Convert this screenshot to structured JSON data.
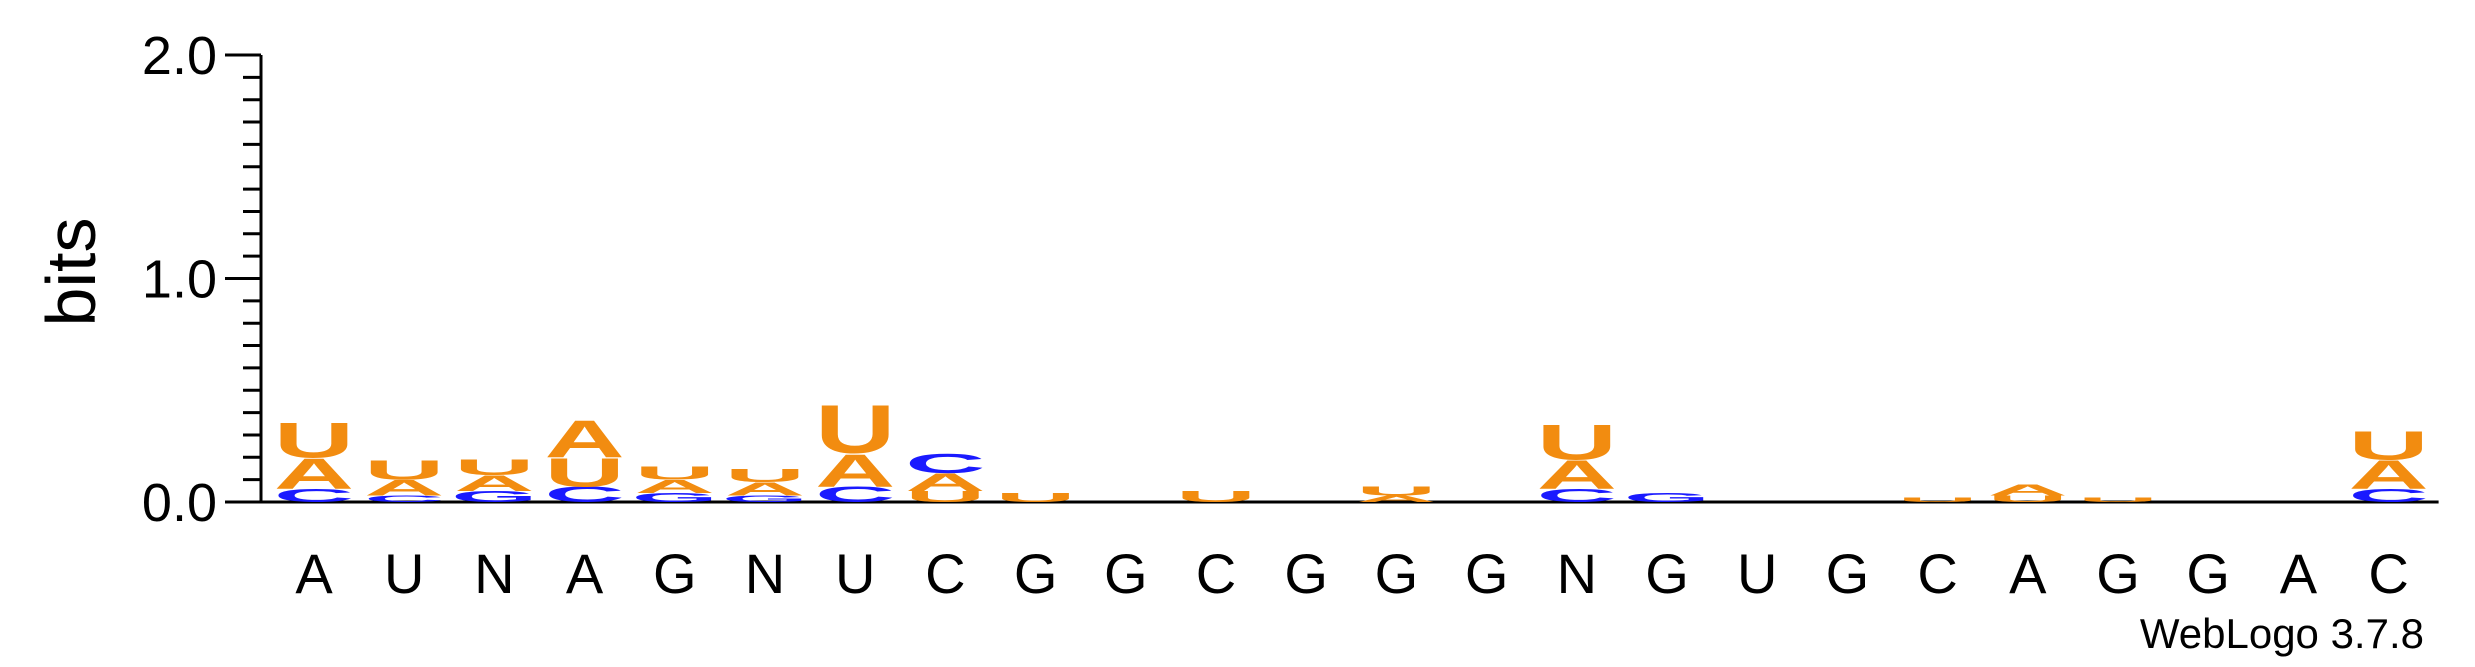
{
  "chart_data": {
    "type": "sequence-logo",
    "ylabel": "bits",
    "ylim": [
      0,
      2.0
    ],
    "yticks": [
      "0.0",
      "1.0",
      "2.0"
    ],
    "credit": "WebLogo 3.7.8",
    "colors": {
      "A": "#f28c10",
      "U": "#f28c10",
      "C": "#1a1aff",
      "G": "#1a1aff"
    },
    "positions": [
      {
        "label": "A",
        "stack": [
          {
            "letter": "C",
            "height": 0.06
          },
          {
            "letter": "A",
            "height": 0.14
          },
          {
            "letter": "U",
            "height": 0.16
          }
        ]
      },
      {
        "label": "U",
        "stack": [
          {
            "letter": "C",
            "height": 0.03
          },
          {
            "letter": "A",
            "height": 0.07
          },
          {
            "letter": "U",
            "height": 0.09
          }
        ]
      },
      {
        "label": "N",
        "stack": [
          {
            "letter": "G",
            "height": 0.05
          },
          {
            "letter": "A",
            "height": 0.07
          },
          {
            "letter": "U",
            "height": 0.07
          }
        ]
      },
      {
        "label": "A",
        "stack": [
          {
            "letter": "C",
            "height": 0.07
          },
          {
            "letter": "U",
            "height": 0.13
          },
          {
            "letter": "A",
            "height": 0.17
          }
        ]
      },
      {
        "label": "G",
        "stack": [
          {
            "letter": "G",
            "height": 0.04
          },
          {
            "letter": "A",
            "height": 0.06
          },
          {
            "letter": "U",
            "height": 0.06
          }
        ]
      },
      {
        "label": "N",
        "stack": [
          {
            "letter": "G",
            "height": 0.03
          },
          {
            "letter": "A",
            "height": 0.06
          },
          {
            "letter": "U",
            "height": 0.06
          }
        ]
      },
      {
        "label": "U",
        "stack": [
          {
            "letter": "C",
            "height": 0.07
          },
          {
            "letter": "A",
            "height": 0.15
          },
          {
            "letter": "U",
            "height": 0.22
          }
        ]
      },
      {
        "label": "C",
        "stack": [
          {
            "letter": "U",
            "height": 0.05
          },
          {
            "letter": "A",
            "height": 0.08
          },
          {
            "letter": "C",
            "height": 0.09
          }
        ]
      },
      {
        "label": "G",
        "stack": [
          {
            "letter": "U",
            "height": 0.04
          }
        ]
      },
      {
        "label": "G",
        "stack": []
      },
      {
        "label": "C",
        "stack": [
          {
            "letter": "U",
            "height": 0.05
          }
        ]
      },
      {
        "label": "G",
        "stack": []
      },
      {
        "label": "G",
        "stack": [
          {
            "letter": "A",
            "height": 0.03
          },
          {
            "letter": "U",
            "height": 0.04
          }
        ]
      },
      {
        "label": "G",
        "stack": []
      },
      {
        "label": "N",
        "stack": [
          {
            "letter": "C",
            "height": 0.06
          },
          {
            "letter": "A",
            "height": 0.13
          },
          {
            "letter": "U",
            "height": 0.16
          }
        ]
      },
      {
        "label": "G",
        "stack": [
          {
            "letter": "G",
            "height": 0.04
          }
        ]
      },
      {
        "label": "U",
        "stack": []
      },
      {
        "label": "G",
        "stack": []
      },
      {
        "label": "C",
        "stack": [
          {
            "letter": "U",
            "height": 0.02
          }
        ]
      },
      {
        "label": "A",
        "stack": [
          {
            "letter": "U",
            "height": 0.03
          },
          {
            "letter": "A",
            "height": 0.05
          }
        ]
      },
      {
        "label": "G",
        "stack": [
          {
            "letter": "U",
            "height": 0.02
          }
        ]
      },
      {
        "label": "G",
        "stack": []
      },
      {
        "label": "A",
        "stack": []
      },
      {
        "label": "C",
        "stack": [
          {
            "letter": "C",
            "height": 0.06
          },
          {
            "letter": "A",
            "height": 0.13
          },
          {
            "letter": "U",
            "height": 0.13
          }
        ]
      }
    ]
  }
}
